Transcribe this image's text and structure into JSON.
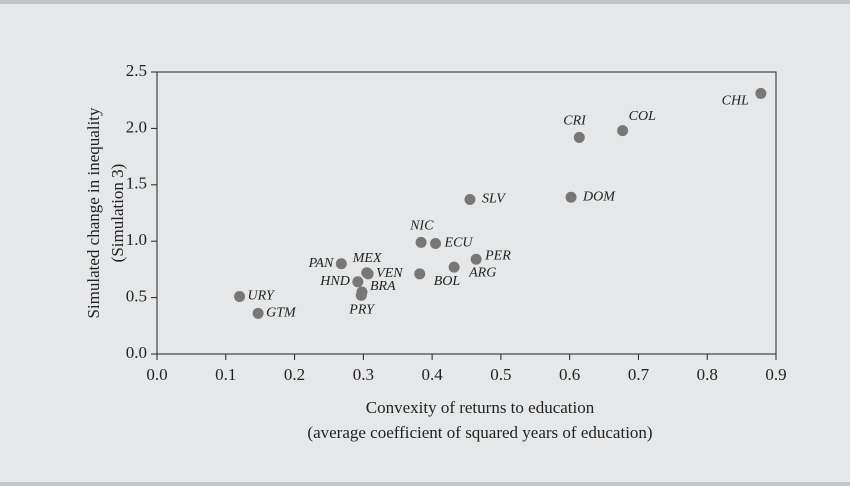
{
  "chart_data": {
    "type": "scatter",
    "xlabel": [
      "Convexity of returns to education",
      "(average coefficient of squared years of education)"
    ],
    "ylabel": [
      "Simulated change in inequality",
      "(Simulation 3)"
    ],
    "labels": [
      "URY",
      "GTM",
      "PAN",
      "MEX",
      "VEN",
      "HND",
      "BRA",
      "PRY",
      "NIC",
      "ECU",
      "BOL",
      "ARG",
      "PER",
      "SLV",
      "DOM",
      "CRI",
      "COL",
      "CHL"
    ],
    "x": [
      0.12,
      0.147,
      0.268,
      0.305,
      0.307,
      0.292,
      0.298,
      0.297,
      0.384,
      0.405,
      0.382,
      0.432,
      0.464,
      0.455,
      0.602,
      0.614,
      0.677,
      0.878
    ],
    "values": [
      0.51,
      0.36,
      0.8,
      0.72,
      0.71,
      0.64,
      0.55,
      0.52,
      0.99,
      0.98,
      0.71,
      0.77,
      0.84,
      1.37,
      1.39,
      1.92,
      1.98,
      2.31
    ],
    "color": "#777777",
    "xlim": [
      0,
      0.9
    ],
    "xticks": [
      {
        "value": 0,
        "label": "0.0"
      },
      0.1,
      0.2,
      0.3,
      0.4,
      0.5,
      0.6,
      0.7,
      0.8,
      0.9
    ],
    "ylim": [
      0,
      2.5
    ],
    "yticks": [
      {
        "value": 0,
        "label": "0.0"
      },
      0.5,
      {
        "value": 1,
        "label": "1.0"
      },
      1.5,
      {
        "value": 2,
        "label": "2.0"
      },
      2.5
    ]
  }
}
